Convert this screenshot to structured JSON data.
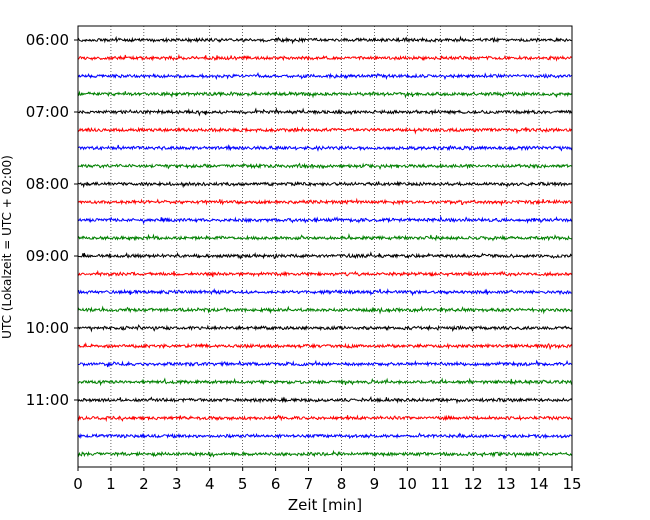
{
  "chart_data": {
    "type": "line",
    "subtype": "helicorder",
    "xlabel": "Zeit  [min]",
    "ylabel": "UTC (Lokalzeit = UTC + 02:00)",
    "xlim": [
      0,
      15
    ],
    "x_ticks": [
      0,
      1,
      2,
      3,
      4,
      5,
      6,
      7,
      8,
      9,
      10,
      11,
      12,
      13,
      14,
      15
    ],
    "x_tick_labels": [
      "0",
      "1",
      "2",
      "3",
      "4",
      "5",
      "6",
      "7",
      "8",
      "9",
      "10",
      "11",
      "12",
      "13",
      "14",
      "15"
    ],
    "y_tick_labels": [
      "06:00",
      "07:00",
      "08:00",
      "09:00",
      "10:00",
      "11:00"
    ],
    "vertical_grid": true,
    "grid_style": "dotted",
    "trace_colors": [
      "#000000",
      "#ff0000",
      "#0000ff",
      "#008000"
    ],
    "trace_duration_min": 15,
    "traces": [
      {
        "start": "06:00",
        "color": "#000000"
      },
      {
        "start": "06:15",
        "color": "#ff0000"
      },
      {
        "start": "06:30",
        "color": "#0000ff"
      },
      {
        "start": "06:45",
        "color": "#008000"
      },
      {
        "start": "07:00",
        "color": "#000000"
      },
      {
        "start": "07:15",
        "color": "#ff0000"
      },
      {
        "start": "07:30",
        "color": "#0000ff"
      },
      {
        "start": "07:45",
        "color": "#008000"
      },
      {
        "start": "08:00",
        "color": "#000000"
      },
      {
        "start": "08:15",
        "color": "#ff0000"
      },
      {
        "start": "08:30",
        "color": "#0000ff"
      },
      {
        "start": "08:45",
        "color": "#008000"
      },
      {
        "start": "09:00",
        "color": "#000000"
      },
      {
        "start": "09:15",
        "color": "#ff0000"
      },
      {
        "start": "09:30",
        "color": "#0000ff"
      },
      {
        "start": "09:45",
        "color": "#008000"
      },
      {
        "start": "10:00",
        "color": "#000000"
      },
      {
        "start": "10:15",
        "color": "#ff0000"
      },
      {
        "start": "10:30",
        "color": "#0000ff"
      },
      {
        "start": "10:45",
        "color": "#008000"
      },
      {
        "start": "11:00",
        "color": "#000000"
      },
      {
        "start": "11:15",
        "color": "#ff0000"
      },
      {
        "start": "11:30",
        "color": "#0000ff"
      },
      {
        "start": "11:45",
        "color": "#008000"
      }
    ]
  }
}
